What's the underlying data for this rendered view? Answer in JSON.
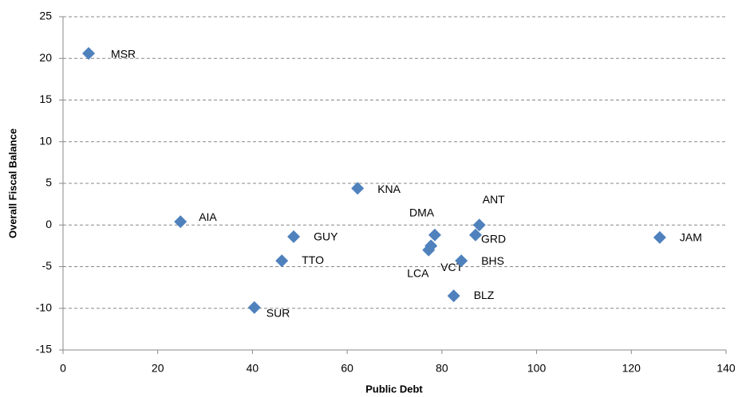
{
  "chart_data": {
    "type": "scatter",
    "xlabel": "Public Debt",
    "ylabel": "Overall Fiscal Balance",
    "color": "#4f81bd",
    "series": [
      {
        "name": null,
        "color": "#4f81bd",
        "labels": [
          "MSR",
          "AIA",
          "GUY",
          "TTO",
          "SUR",
          "KNA",
          "DMA",
          "VCT",
          "LCA",
          "ANT",
          "GRD",
          "BHS",
          "BLZ",
          "JAM"
        ],
        "x": [
          5.4,
          24.8,
          48.7,
          46.2,
          40.4,
          62.2,
          78.5,
          77.7,
          77.2,
          87.9,
          87.1,
          84.1,
          82.5,
          126
        ],
        "values": [
          20.6,
          0.4,
          -1.4,
          -4.3,
          -9.9,
          4.4,
          -1.2,
          -2.5,
          -3.0,
          0,
          -1.2,
          -4.3,
          -8.5,
          -1.5
        ]
      }
    ],
    "xlim": [
      0,
      140
    ],
    "xticks": [
      0,
      20,
      40,
      60,
      80,
      100,
      120,
      140
    ],
    "ylim": [
      -15,
      25
    ],
    "yticks": [
      -15,
      -10,
      -5,
      0,
      5,
      10,
      15,
      20,
      25
    ],
    "grid": true
  }
}
